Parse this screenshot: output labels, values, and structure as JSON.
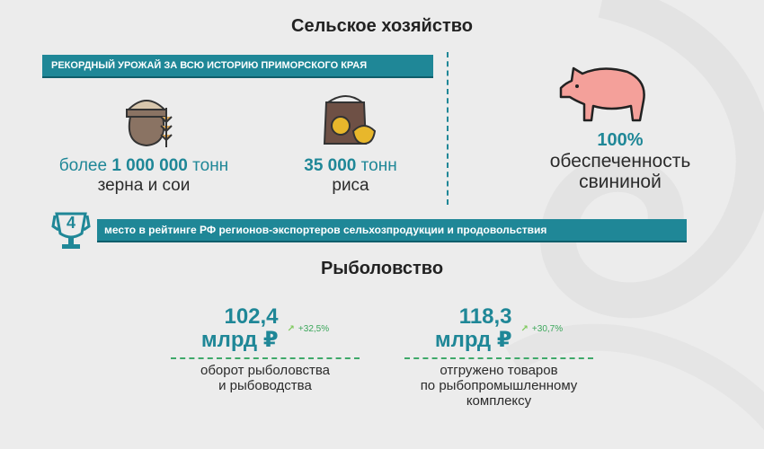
{
  "agriculture": {
    "title": "Сельское хозяйство",
    "banner": "РЕКОРДНЫЙ УРОЖАЙ ЗА ВСЮ ИСТОРИЮ ПРИМОРСКОГО КРАЯ",
    "grain": {
      "prefix": "более ",
      "value": "1 000 000",
      "unit": " тонн",
      "caption": "зерна и сои"
    },
    "rice": {
      "value": "35 000",
      "unit": " тонн",
      "caption": "риса"
    },
    "pork": {
      "value": "100%",
      "line1": "обеспеченность",
      "line2": "свининой"
    },
    "rank": {
      "place": "4",
      "text": "место в рейтинге РФ регионов-экспортеров сельхозпродукции и продовольствия"
    }
  },
  "fishing": {
    "title": "Рыболовство",
    "items": [
      {
        "value": "102,4",
        "unit": "млрд ₽",
        "growth": "+32,5%",
        "line1": "оборот рыболовства",
        "line2": "и рыбоводства",
        "line3": ""
      },
      {
        "value": "118,3",
        "unit": "млрд ₽",
        "growth": "+30,7%",
        "line1": "отгружено товаров",
        "line2": "по рыбопромышленному",
        "line3": "комплексу"
      }
    ]
  },
  "colors": {
    "teal": "#1f8797",
    "growth": "#3aa65a",
    "pig": "#f4a09a"
  }
}
